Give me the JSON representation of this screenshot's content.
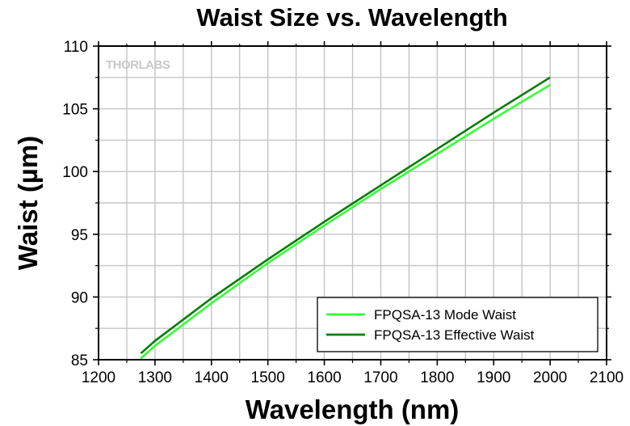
{
  "chart_data": {
    "type": "line",
    "title": "Waist Size vs. Wavelength",
    "xlabel": "Wavelength (nm)",
    "ylabel": "Waist (µm)",
    "xlim": [
      1200,
      2100
    ],
    "ylim": [
      85,
      110
    ],
    "xticks": [
      "1200",
      "1300",
      "1400",
      "1500",
      "1600",
      "1700",
      "1800",
      "1900",
      "2000",
      "2100"
    ],
    "yticks": [
      "85",
      "90",
      "95",
      "100",
      "105",
      "110"
    ],
    "grid": true,
    "legend_position": "bottom-right",
    "watermark": "THORLABS",
    "series": [
      {
        "name": "FPQSA-13 Mode Waist",
        "color": "#33ff33",
        "x": [
          1275,
          1300,
          1400,
          1500,
          1600,
          1700,
          1800,
          1900,
          2000
        ],
        "y": [
          85.1,
          86.1,
          89.5,
          92.7,
          95.7,
          98.6,
          101.4,
          104.2,
          106.9
        ]
      },
      {
        "name": "FPQSA-13 Effective Waist",
        "color": "#0a7a0a",
        "x": [
          1275,
          1300,
          1400,
          1500,
          1600,
          1700,
          1800,
          1900,
          2000
        ],
        "y": [
          85.5,
          86.5,
          89.9,
          93.0,
          96.0,
          98.9,
          101.8,
          104.7,
          107.5
        ]
      }
    ]
  }
}
